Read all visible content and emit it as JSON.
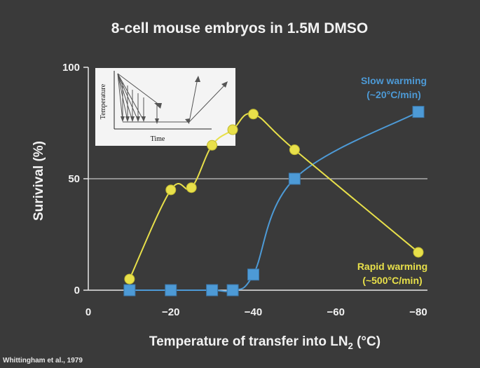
{
  "chart_data": {
    "type": "line",
    "title": "8-cell mouse embryos in 1.5M DMSO",
    "xlabel": "Temperature of transfer into LN",
    "xlabel_sub": "2",
    "xlabel_unit": " (°C)",
    "ylabel": "Surivival (%)",
    "xlim": [
      0,
      -80
    ],
    "ylim": [
      0,
      100
    ],
    "x_ticks": [
      {
        "value": 0,
        "label": "0"
      },
      {
        "value": -20,
        "label": "−20"
      },
      {
        "value": -40,
        "label": "−40"
      },
      {
        "value": -60,
        "label": "−60"
      },
      {
        "value": -80,
        "label": "−80"
      }
    ],
    "y_ticks": [
      {
        "value": 0,
        "label": "0"
      },
      {
        "value": 50,
        "label": "50"
      },
      {
        "value": 100,
        "label": "100"
      }
    ],
    "reference_line_y": 50,
    "series": [
      {
        "key": "slow",
        "legend_line1": "Slow warming",
        "legend_line2": "(~20°C/min)",
        "color": "#4d9ad6",
        "marker": "square",
        "points": [
          {
            "x": -10,
            "y": 0
          },
          {
            "x": -20,
            "y": 0
          },
          {
            "x": -30,
            "y": 0
          },
          {
            "x": -35,
            "y": 0
          },
          {
            "x": -40,
            "y": 7
          },
          {
            "x": -50,
            "y": 50
          },
          {
            "x": -80,
            "y": 80
          }
        ]
      },
      {
        "key": "rapid",
        "legend_line1": "Rapid warming",
        "legend_line2": "(~500°C/min)",
        "color": "#e8e04a",
        "marker": "circle",
        "points": [
          {
            "x": -10,
            "y": 5
          },
          {
            "x": -20,
            "y": 45
          },
          {
            "x": -25,
            "y": 46
          },
          {
            "x": -30,
            "y": 65
          },
          {
            "x": -35,
            "y": 72
          },
          {
            "x": -40,
            "y": 79
          },
          {
            "x": -50,
            "y": 63
          },
          {
            "x": -80,
            "y": 17
          }
        ]
      }
    ],
    "inset": {
      "ylabel": "Temperature",
      "xlabel": "Time"
    }
  },
  "citation": "Whittingham et al., 1979"
}
